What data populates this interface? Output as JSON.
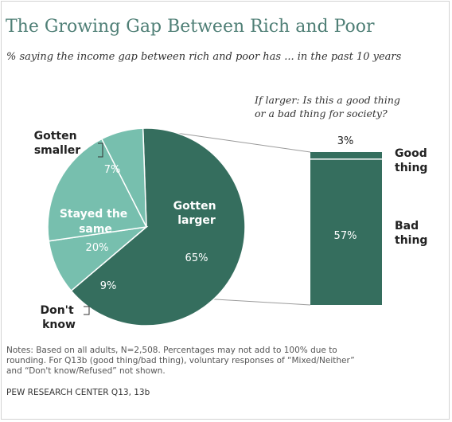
{
  "title": "The Growing Gap Between Rich and Poor",
  "subtitle": "% saying the income gap between rich and poor  has ... in the past 10 years",
  "bar_question_line1": "If larger: Is this a good thing",
  "bar_question_line2": "or a bad thing for society?",
  "notes_line1": "Notes: Based on all adults, N=2,508. Percentages may not add to 100% due to",
  "notes_line2": "rounding. For Q13b (good thing/bad thing), voluntary responses of “Mixed/Neither”",
  "notes_line3": "and “Don't know/Refused” not shown.",
  "source": "PEW RESEARCH CENTER Q13, 13b",
  "colors": {
    "title": "#4f7f76",
    "dark_green": "#356e5e",
    "light_green": "#77bfae",
    "border": "#d3d3d3"
  },
  "chart_data": [
    {
      "type": "pie",
      "slices": [
        {
          "key": "larger",
          "label_lines": [
            "Gotten",
            "larger"
          ],
          "value": 65,
          "value_label": "65%"
        },
        {
          "key": "dk",
          "label_lines": [
            "Don't",
            "know"
          ],
          "value": 9,
          "value_label": "9%"
        },
        {
          "key": "same",
          "label_lines": [
            "Stayed the",
            "same"
          ],
          "value": 20,
          "value_label": "20%"
        },
        {
          "key": "smaller",
          "label_lines": [
            "Gotten",
            "smaller"
          ],
          "value": 7,
          "value_label": "7%"
        }
      ]
    },
    {
      "type": "bar",
      "stacked": true,
      "segments": [
        {
          "key": "good",
          "label_lines": [
            "Good",
            "thing"
          ],
          "value": 3,
          "value_label": "3%"
        },
        {
          "key": "bad",
          "label_lines": [
            "Bad",
            "thing"
          ],
          "value": 57,
          "value_label": "57%"
        }
      ]
    }
  ]
}
